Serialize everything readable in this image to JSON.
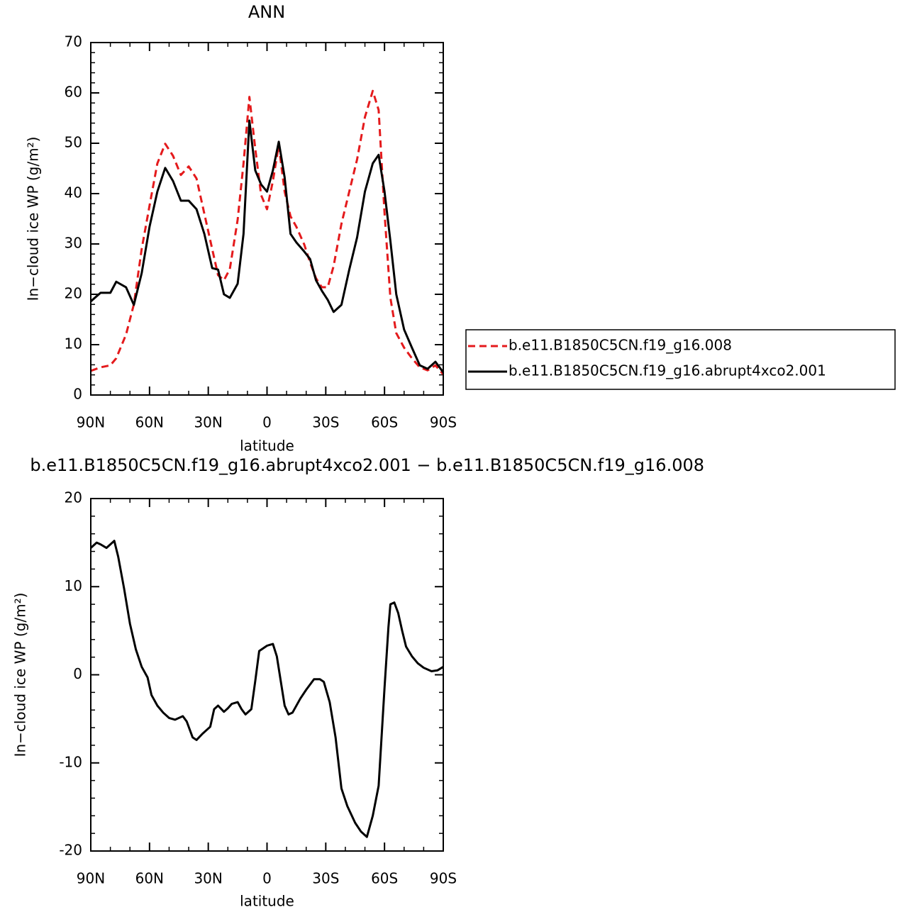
{
  "chart_data": [
    {
      "type": "line",
      "title": "ANN",
      "xlabel": "latitude",
      "ylabel": "In−cloud ice WP (g/m²)",
      "x": [
        90,
        85,
        80,
        77,
        72,
        68,
        64,
        60,
        56,
        52,
        48,
        44,
        40,
        36,
        32,
        28,
        25,
        22,
        19,
        15,
        12,
        9,
        6,
        3,
        0,
        -3,
        -6,
        -9,
        -12,
        -15,
        -19,
        -22,
        -25,
        -28,
        -31,
        -34,
        -38,
        -42,
        -46,
        -50,
        -54,
        -57,
        -60,
        -63,
        -66,
        -70,
        -74,
        -78,
        -82,
        -86,
        -90
      ],
      "series": [
        {
          "name": "b.e11.B1850C5CN.f19_g16.008",
          "color": "#e41a1c",
          "dashed": true,
          "values": [
            4.8,
            5.5,
            5.9,
            7.3,
            12,
            18,
            29,
            37.6,
            46,
            49.9,
            47.5,
            43.7,
            45.4,
            43,
            36,
            29,
            23.8,
            22.8,
            25,
            34.8,
            46,
            59.2,
            48.9,
            39.7,
            36.9,
            42.5,
            49.6,
            40.4,
            35.5,
            33.4,
            29.9,
            26.3,
            23.2,
            21.4,
            21.4,
            25.6,
            34,
            40.4,
            46.8,
            55.2,
            60.4,
            56.6,
            36.2,
            19.3,
            12.3,
            9.4,
            7.3,
            5.5,
            4.9,
            5.9,
            4.1
          ]
        },
        {
          "name": "b.e11.B1850C5CN.f19_g16.abrupt4xco2.001",
          "color": "#000000",
          "dashed": false,
          "values": [
            18.6,
            20.3,
            20.3,
            22.5,
            21.4,
            17.9,
            24.2,
            33.4,
            40.4,
            45.1,
            42.5,
            38.6,
            38.6,
            36.9,
            32,
            25.2,
            24.9,
            20,
            19.3,
            22.1,
            32,
            54.5,
            44.6,
            41.8,
            40.4,
            44.6,
            50.3,
            43.2,
            32,
            30.3,
            28.5,
            27,
            22.8,
            20.7,
            18.9,
            16.5,
            17.9,
            24.9,
            31.3,
            40.4,
            46,
            47.7,
            40.4,
            30.6,
            20,
            13,
            9.4,
            5.9,
            5.2,
            6.6,
            4.5
          ]
        }
      ],
      "xlim": [
        90,
        -90
      ],
      "xticks": [
        {
          "value": 90,
          "label": "90N"
        },
        {
          "value": 60,
          "label": "60N"
        },
        {
          "value": 30,
          "label": "30N"
        },
        0,
        {
          "value": -30,
          "label": "30S"
        },
        {
          "value": -60,
          "label": "60S"
        },
        {
          "value": -90,
          "label": "90S"
        }
      ],
      "ylim": [
        0,
        70
      ],
      "yticks": [
        0,
        10,
        20,
        30,
        40,
        50,
        60,
        70
      ],
      "legend": "outside-right"
    },
    {
      "type": "line",
      "title": "b.e11.B1850C5CN.f19_g16.abrupt4xco2.001 − b.e11.B1850C5CN.f19_g16.008",
      "xlabel": "latitude",
      "ylabel": "In−cloud ice WP (g/m²)",
      "x": [
        90,
        87,
        85,
        82,
        78,
        76,
        73,
        70,
        67,
        64,
        61,
        59,
        56,
        53,
        50,
        47,
        43,
        41,
        38,
        36,
        33,
        29,
        27,
        25,
        22,
        20,
        18,
        15,
        13,
        11,
        8,
        6,
        4,
        0,
        -3,
        -5,
        -9,
        -11,
        -13,
        -17,
        -20,
        -24,
        -27,
        -29,
        -32,
        -35,
        -38,
        -41,
        -45,
        -48,
        -51,
        -54,
        -57,
        -60,
        -62,
        -63,
        -65,
        -67,
        -69,
        -71,
        -74,
        -77,
        -80,
        -84,
        -87,
        -90
      ],
      "values": [
        14.4,
        15,
        14.8,
        14.4,
        15.2,
        13.4,
        9.8,
        5.8,
        2.9,
        0.9,
        -0.3,
        -2.3,
        -3.5,
        -4.3,
        -4.9,
        -5.1,
        -4.7,
        -5.3,
        -7.1,
        -7.4,
        -6.7,
        -5.9,
        -3.9,
        -3.5,
        -4.2,
        -3.8,
        -3.3,
        -3.1,
        -3.9,
        -4.5,
        -3.9,
        -0.7,
        2.7,
        3.3,
        3.5,
        2.1,
        -3.5,
        -4.5,
        -4.3,
        -2.7,
        -1.7,
        -0.5,
        -0.5,
        -0.8,
        -3.1,
        -7.1,
        -12.9,
        -14.9,
        -16.8,
        -17.8,
        -18.4,
        -16,
        -12.6,
        -1.5,
        5.4,
        8,
        8.2,
        7,
        5,
        3.2,
        2.1,
        1.3,
        0.8,
        0.4,
        0.5,
        0.9
      ],
      "color": "#000000",
      "xlim": [
        90,
        -90
      ],
      "xticks": [
        {
          "value": 90,
          "label": "90N"
        },
        {
          "value": 60,
          "label": "60N"
        },
        {
          "value": 30,
          "label": "30N"
        },
        0,
        {
          "value": -30,
          "label": "30S"
        },
        {
          "value": -60,
          "label": "60S"
        },
        {
          "value": -90,
          "label": "90S"
        }
      ],
      "ylim": [
        -20,
        20
      ],
      "yticks": [
        -20,
        -10,
        0,
        10,
        20
      ]
    }
  ]
}
